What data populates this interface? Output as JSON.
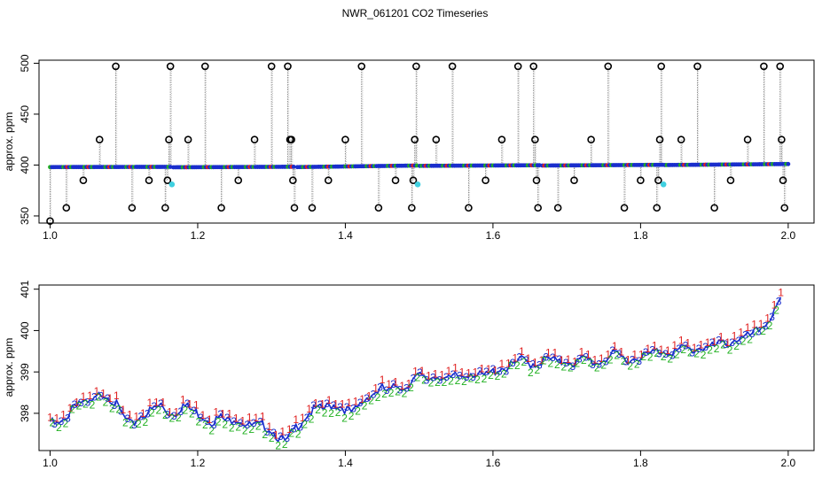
{
  "title": "NWR_061201  CO2 Timeseries",
  "chart_data": [
    {
      "type": "scatter",
      "name": "top-panel",
      "ylabel": "approx. ppm",
      "xlabel": "",
      "xlim": [
        0.985,
        2.035
      ],
      "ylim": [
        343,
        503
      ],
      "xticks": [
        1.0,
        1.2,
        1.4,
        1.6,
        1.8,
        2.0
      ],
      "xtick_labels": [
        "1.0",
        "1.2",
        "1.4",
        "1.6",
        "1.8",
        "2.0"
      ],
      "yticks": [
        350,
        400,
        450,
        500
      ],
      "ytick_labels": [
        "350",
        "400",
        "450",
        "500"
      ],
      "grid": false,
      "legend": "none",
      "colors": {
        "gray_line": "#8a8a8a",
        "outlier": "#000000",
        "series1": "#e02020",
        "series2": "#20b020",
        "series3": "#1a2ecc",
        "flagged": "#40d0e0"
      },
      "baseline_segments": [
        {
          "x": [
            1.0,
            1.163
          ],
          "y": [
            398.0,
            398.2
          ]
        },
        {
          "x": [
            1.167,
            1.33
          ],
          "y": [
            397.8,
            398.3
          ]
        },
        {
          "x": [
            1.335,
            1.497
          ],
          "y": [
            398.0,
            399.5
          ]
        },
        {
          "x": [
            1.501,
            1.663
          ],
          "y": [
            399.2,
            399.8
          ]
        },
        {
          "x": [
            1.667,
            1.83
          ],
          "y": [
            399.5,
            400.2
          ]
        },
        {
          "x": [
            1.833,
            2.0
          ],
          "y": [
            400.0,
            401.0
          ]
        }
      ],
      "outliers": [
        {
          "x": 1.0,
          "y": 345
        },
        {
          "x": 1.022,
          "y": 358
        },
        {
          "x": 1.045,
          "y": 385
        },
        {
          "x": 1.067,
          "y": 425
        },
        {
          "x": 1.089,
          "y": 497
        },
        {
          "x": 1.111,
          "y": 358
        },
        {
          "x": 1.134,
          "y": 385
        },
        {
          "x": 1.156,
          "y": 358
        },
        {
          "x": 1.159,
          "y": 385
        },
        {
          "x": 1.161,
          "y": 425
        },
        {
          "x": 1.163,
          "y": 497
        },
        {
          "x": 1.187,
          "y": 425
        },
        {
          "x": 1.21,
          "y": 497
        },
        {
          "x": 1.232,
          "y": 358
        },
        {
          "x": 1.255,
          "y": 385
        },
        {
          "x": 1.277,
          "y": 425
        },
        {
          "x": 1.3,
          "y": 497
        },
        {
          "x": 1.322,
          "y": 497
        },
        {
          "x": 1.325,
          "y": 425
        },
        {
          "x": 1.327,
          "y": 425
        },
        {
          "x": 1.329,
          "y": 385
        },
        {
          "x": 1.331,
          "y": 358
        },
        {
          "x": 1.355,
          "y": 358
        },
        {
          "x": 1.377,
          "y": 385
        },
        {
          "x": 1.4,
          "y": 425
        },
        {
          "x": 1.422,
          "y": 497
        },
        {
          "x": 1.445,
          "y": 358
        },
        {
          "x": 1.468,
          "y": 385
        },
        {
          "x": 1.49,
          "y": 358
        },
        {
          "x": 1.492,
          "y": 385
        },
        {
          "x": 1.494,
          "y": 425
        },
        {
          "x": 1.496,
          "y": 497
        },
        {
          "x": 1.523,
          "y": 425
        },
        {
          "x": 1.545,
          "y": 497
        },
        {
          "x": 1.567,
          "y": 358
        },
        {
          "x": 1.59,
          "y": 385
        },
        {
          "x": 1.612,
          "y": 425
        },
        {
          "x": 1.634,
          "y": 497
        },
        {
          "x": 1.655,
          "y": 497
        },
        {
          "x": 1.657,
          "y": 425
        },
        {
          "x": 1.659,
          "y": 385
        },
        {
          "x": 1.661,
          "y": 358
        },
        {
          "x": 1.688,
          "y": 358
        },
        {
          "x": 1.71,
          "y": 385
        },
        {
          "x": 1.733,
          "y": 425
        },
        {
          "x": 1.756,
          "y": 497
        },
        {
          "x": 1.778,
          "y": 358
        },
        {
          "x": 1.8,
          "y": 385
        },
        {
          "x": 1.822,
          "y": 358
        },
        {
          "x": 1.824,
          "y": 385
        },
        {
          "x": 1.826,
          "y": 425
        },
        {
          "x": 1.828,
          "y": 497
        },
        {
          "x": 1.855,
          "y": 425
        },
        {
          "x": 1.877,
          "y": 497
        },
        {
          "x": 1.9,
          "y": 358
        },
        {
          "x": 1.922,
          "y": 385
        },
        {
          "x": 1.945,
          "y": 425
        },
        {
          "x": 1.967,
          "y": 497
        },
        {
          "x": 1.989,
          "y": 497
        },
        {
          "x": 1.991,
          "y": 425
        },
        {
          "x": 1.993,
          "y": 385
        },
        {
          "x": 1.995,
          "y": 358
        }
      ],
      "flagged_points": [
        {
          "x": 1.165,
          "y": 381
        },
        {
          "x": 1.498,
          "y": 381
        },
        {
          "x": 1.831,
          "y": 381
        }
      ]
    },
    {
      "type": "line",
      "name": "bottom-panel",
      "ylabel": "approx. ppm",
      "xlabel": "",
      "xlim": [
        0.985,
        2.035
      ],
      "ylim": [
        397.1,
        401.1
      ],
      "xticks": [
        1.0,
        1.2,
        1.4,
        1.6,
        1.8,
        2.0
      ],
      "xtick_labels": [
        "1.0",
        "1.2",
        "1.4",
        "1.6",
        "1.8",
        "2.0"
      ],
      "yticks": [
        398,
        399,
        400,
        401
      ],
      "ytick_labels": [
        "398",
        "399",
        "400",
        "401"
      ],
      "grid": false,
      "legend": "none",
      "point_symbols": [
        "1",
        "2",
        "3"
      ],
      "colors": {
        "series1": "#e02020",
        "series2": "#20b020",
        "series3": "#1a2ecc"
      },
      "trace": {
        "x": [
          1.0,
          1.01,
          1.02,
          1.03,
          1.04,
          1.05,
          1.06,
          1.07,
          1.08,
          1.09,
          1.1,
          1.11,
          1.12,
          1.13,
          1.14,
          1.15,
          1.16,
          1.17,
          1.18,
          1.19,
          1.2,
          1.21,
          1.22,
          1.23,
          1.24,
          1.25,
          1.26,
          1.27,
          1.28,
          1.29,
          1.3,
          1.31,
          1.32,
          1.33,
          1.34,
          1.35,
          1.36,
          1.37,
          1.38,
          1.39,
          1.4,
          1.41,
          1.42,
          1.43,
          1.44,
          1.45,
          1.46,
          1.47,
          1.48,
          1.49,
          1.5,
          1.51,
          1.52,
          1.53,
          1.54,
          1.55,
          1.56,
          1.57,
          1.58,
          1.59,
          1.6,
          1.61,
          1.62,
          1.63,
          1.64,
          1.65,
          1.66,
          1.67,
          1.68,
          1.69,
          1.7,
          1.71,
          1.72,
          1.73,
          1.74,
          1.75,
          1.76,
          1.77,
          1.78,
          1.79,
          1.8,
          1.81,
          1.82,
          1.83,
          1.84,
          1.85,
          1.86,
          1.87,
          1.88,
          1.89,
          1.9,
          1.91,
          1.92,
          1.93,
          1.94,
          1.95,
          1.96,
          1.97,
          1.98,
          1.99
        ],
        "y": [
          397.8,
          397.7,
          397.8,
          398.2,
          398.3,
          398.2,
          398.3,
          398.5,
          398.4,
          398.2,
          397.9,
          397.7,
          397.9,
          398.0,
          398.1,
          398.2,
          398.0,
          398.0,
          398.2,
          398.1,
          398.0,
          397.9,
          397.8,
          397.9,
          397.8,
          397.9,
          397.8,
          397.7,
          397.7,
          397.7,
          397.6,
          397.4,
          397.3,
          397.6,
          397.8,
          398.0,
          398.1,
          398.1,
          398.2,
          398.2,
          398.1,
          398.0,
          398.2,
          398.4,
          398.5,
          398.6,
          398.5,
          398.7,
          398.6,
          398.8,
          398.9,
          398.8,
          398.9,
          398.9,
          398.8,
          398.9,
          398.9,
          399.0,
          398.9,
          398.9,
          399.0,
          399.1,
          399.1,
          399.2,
          399.3,
          399.2,
          399.2,
          399.3,
          399.3,
          399.2,
          399.3,
          399.2,
          399.3,
          399.3,
          399.2,
          399.3,
          399.4,
          399.4,
          399.3,
          399.3,
          399.4,
          399.4,
          399.5,
          399.5,
          399.5,
          399.5,
          399.6,
          399.5,
          399.6,
          399.6,
          399.6,
          399.7,
          399.7,
          399.8,
          399.8,
          399.9,
          400.0,
          400.2,
          400.4,
          400.7
        ]
      }
    }
  ]
}
